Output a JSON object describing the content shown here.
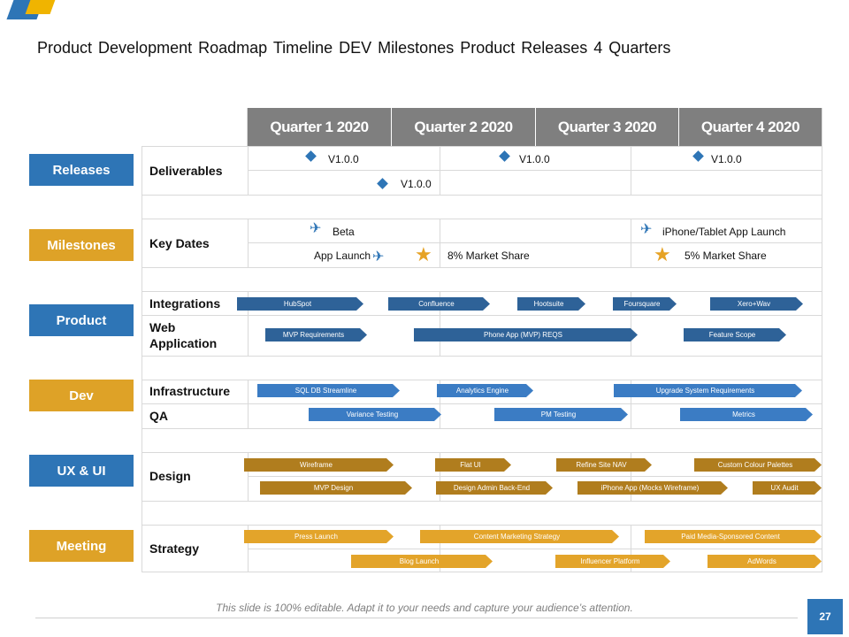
{
  "title": "Product Development Roadmap Timeline DEV Milestones Product Releases 4 Quarters",
  "quarters": [
    "Quarter 1 2020",
    "Quarter 2 2020",
    "Quarter 3 2020",
    "Quarter 4 2020"
  ],
  "side_labels": [
    "Releases",
    "Milestones",
    "Product",
    "Dev",
    "UX & UI",
    "Meeting"
  ],
  "row_labels": {
    "deliverables": "Deliverables",
    "key_dates": "Key Dates",
    "integrations": "Integrations",
    "web_application": "Web\nApplication",
    "infrastructure": "Infrastructure",
    "qa": "QA",
    "design": "Design",
    "strategy": "Strategy"
  },
  "deliverables": [
    "V1.0.0",
    "V1.0.0",
    "V1.0.0",
    "V1.0.0"
  ],
  "key_dates": {
    "beta": "Beta",
    "app_launch": "App Launch",
    "share8": "8% Market Share",
    "tablet_launch": "iPhone/Tablet App Launch",
    "share5": "5% Market Share"
  },
  "integrations": [
    "HubSpot",
    "Confluence",
    "Hootsuite",
    "Foursquare",
    "Xero+Wav"
  ],
  "web_application": [
    "MVP Requirements",
    "Phone App (MVP) REQS",
    "Feature Scope"
  ],
  "infrastructure": [
    "SQL DB Streamline",
    "Analytics Engine",
    "Upgrade System  Requirements"
  ],
  "qa": [
    "Variance Testing",
    "PM Testing",
    "Metrics"
  ],
  "design_row1": [
    "Wireframe",
    "Flat UI",
    "Refine Site NAV",
    "Custom Colour Palettes"
  ],
  "design_row2": [
    "MVP Design",
    "Design Admin Back-End",
    "iPhone App (Mocks Wireframe)",
    "UX Audit"
  ],
  "strategy_row1": [
    "Press Launch",
    "Content Marketing Strategy",
    "Paid Media-Sponsored  Content"
  ],
  "strategy_row2": [
    "Blog Launch",
    "Influencer Platform",
    "AdWords"
  ],
  "footer": "This slide is 100% editable. Adapt it to your needs and capture your audience’s attention.",
  "page_number": "27",
  "colors": {
    "blue": "#2e75b6",
    "gold": "#dea227",
    "header_gray": "#7f7f7f"
  }
}
